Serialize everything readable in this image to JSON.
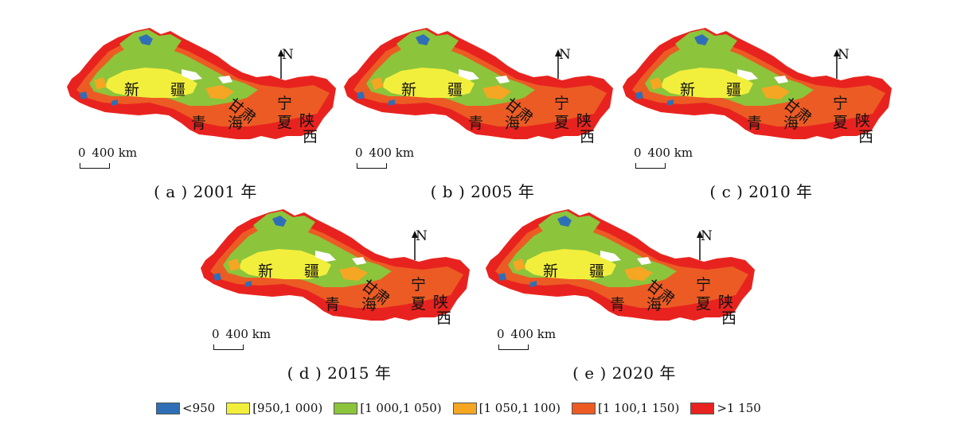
{
  "panels": [
    {
      "caption": "( a ) 2001 年"
    },
    {
      "caption": "( b ) 2005 年"
    },
    {
      "caption": "( c ) 2010 年"
    },
    {
      "caption": "( d ) 2015 年"
    },
    {
      "caption": "( e ) 2020 年"
    }
  ],
  "regions": {
    "xinjiang_1": "新",
    "xinjiang_2": "疆",
    "qinghai_1": "青",
    "qinghai_2": "海",
    "gansu": "甘肃",
    "ningxia_1": "宁",
    "ningxia_2": "夏",
    "shaanxi_1": "陕",
    "shaanxi_2": "西"
  },
  "north_label": "N",
  "scale": {
    "zero": "0",
    "distance": "400 km"
  },
  "legend": [
    {
      "label": "<950",
      "color": "#2f6fb7"
    },
    {
      "label": "[950,1 000)",
      "color": "#f2ef3c"
    },
    {
      "label": "[1 000,1 050)",
      "color": "#8cc43c"
    },
    {
      "label": "[1 050,1 100)",
      "color": "#f5a623"
    },
    {
      "label": "[1 100,1 150)",
      "color": "#ec5b24"
    },
    {
      "label": ">1 150",
      "color": "#e8231f"
    }
  ]
}
